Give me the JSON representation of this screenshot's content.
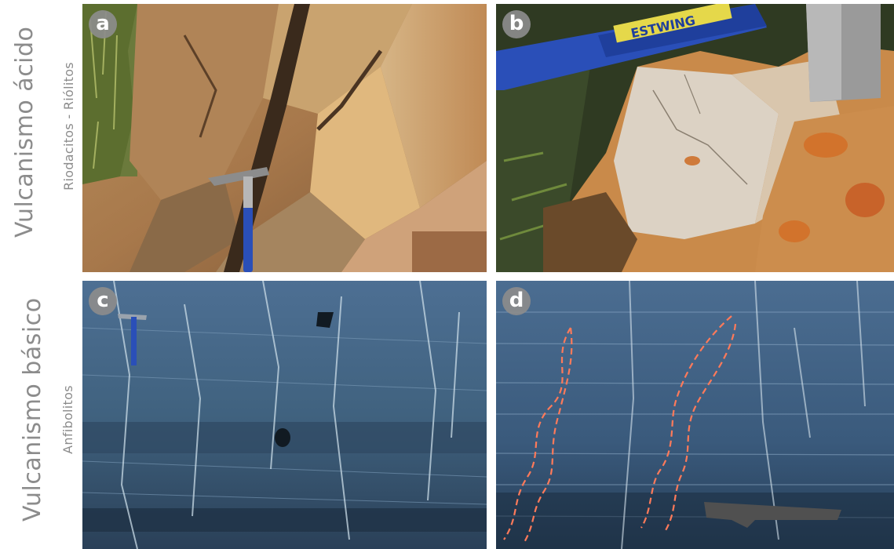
{
  "labels": {
    "acid_title": "Vulcanismo ácido",
    "acid_subtitle": "Riodacitos - Riólitos",
    "basic_title": "Vulcanismo básico",
    "basic_subtitle": "Anfibolitos"
  },
  "panels": [
    {
      "letter": "a"
    },
    {
      "letter": "b",
      "hammer_brand": "ESTWING"
    },
    {
      "letter": "c"
    },
    {
      "letter": "d"
    }
  ],
  "colors": {
    "label_gray": "#8c8c8c",
    "badge_gray": "#8c8c8c",
    "fold_outline": "#ff7a5a",
    "hammer_blue": "#2a4fb8"
  }
}
